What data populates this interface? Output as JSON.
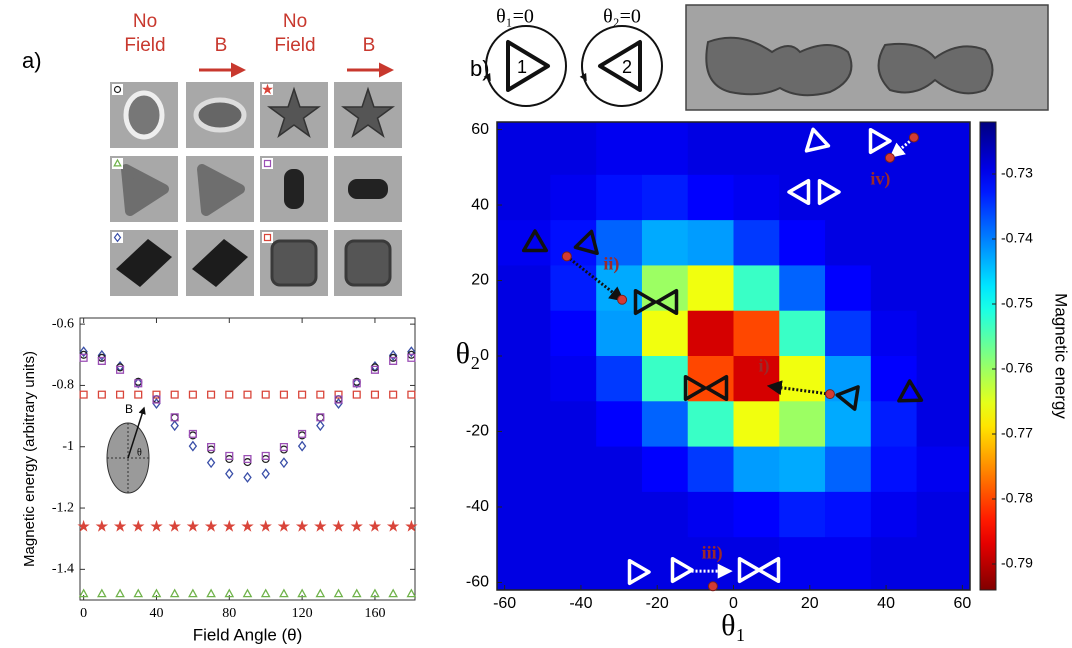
{
  "panel_labels": [
    "a)",
    "b)"
  ],
  "micrographs": {
    "headers": [
      [
        "No",
        "Field"
      ],
      [
        "B"
      ],
      [
        "No",
        "Field"
      ],
      [
        "B"
      ]
    ]
  },
  "schematic": {
    "labels": [
      "θ₁=0",
      "θ₂=0"
    ],
    "numbers": [
      "1",
      "2"
    ]
  },
  "inset": {
    "labels": [
      "B",
      "θ"
    ]
  },
  "chart_data": [
    {
      "type": "scatter",
      "xlabel": "Field Angle (θ)",
      "ylabel": "Magnetic energy (arbitrary units)",
      "x": [
        0,
        10,
        20,
        30,
        40,
        50,
        60,
        70,
        80,
        90,
        100,
        110,
        120,
        130,
        140,
        150,
        160,
        170,
        180
      ],
      "xlim": [
        -2,
        182
      ],
      "xticks": [
        0,
        40,
        80,
        120,
        160
      ],
      "ylim": [
        -1.5,
        -0.58
      ],
      "yticks": [
        -0.6,
        -0.8,
        -1,
        -1.2,
        -1.4
      ],
      "series": [
        {
          "marker": "square",
          "color": "#d9453a",
          "values": [
            -0.83,
            -0.83,
            -0.83,
            -0.83,
            -0.83,
            -0.83,
            -0.83,
            -0.83,
            -0.83,
            -0.83,
            -0.83,
            -0.83,
            -0.83,
            -0.83,
            -0.83,
            -0.83,
            -0.83,
            -0.83,
            -0.83
          ]
        },
        {
          "marker": "diamond",
          "color": "#3a4fa8",
          "values": [
            -0.69,
            -0.702,
            -0.738,
            -0.792,
            -0.859,
            -0.931,
            -0.998,
            -1.052,
            -1.088,
            -1.1,
            -1.088,
            -1.052,
            -0.998,
            -0.931,
            -0.859,
            -0.792,
            -0.738,
            -0.702,
            -0.69
          ]
        },
        {
          "marker": "circle",
          "color": "#222222",
          "values": [
            -0.7,
            -0.71,
            -0.741,
            -0.788,
            -0.845,
            -0.905,
            -0.963,
            -1.009,
            -1.04,
            -1.05,
            -1.04,
            -1.009,
            -0.963,
            -0.905,
            -0.845,
            -0.788,
            -0.741,
            -0.71,
            -0.7
          ]
        },
        {
          "marker": "square",
          "color": "#9b4fb5",
          "values": [
            -0.71,
            -0.72,
            -0.749,
            -0.793,
            -0.846,
            -0.904,
            -0.958,
            -1.001,
            -1.03,
            -1.04,
            -1.03,
            -1.001,
            -0.958,
            -0.904,
            -0.846,
            -0.793,
            -0.749,
            -0.72,
            -0.71
          ]
        },
        {
          "marker": "star",
          "color": "#d9453a",
          "values": [
            -1.26,
            -1.26,
            -1.26,
            -1.26,
            -1.26,
            -1.26,
            -1.26,
            -1.26,
            -1.26,
            -1.26,
            -1.26,
            -1.26,
            -1.26,
            -1.26,
            -1.26,
            -1.26,
            -1.26,
            -1.26,
            -1.26
          ]
        },
        {
          "marker": "triangle",
          "color": "#6fb24a",
          "values": [
            -1.48,
            -1.48,
            -1.48,
            -1.48,
            -1.48,
            -1.48,
            -1.48,
            -1.48,
            -1.48,
            -1.48,
            -1.48,
            -1.48,
            -1.48,
            -1.48,
            -1.48,
            -1.48,
            -1.48,
            -1.48,
            -1.48
          ]
        }
      ]
    },
    {
      "type": "heatmap",
      "xlabel": "θ₁",
      "ylabel": "θ₂",
      "x": [
        -54,
        -42,
        -30,
        -18,
        -6,
        6,
        18,
        30,
        42,
        54
      ],
      "y": [
        54,
        42,
        30,
        18,
        6,
        -6,
        -18,
        -30,
        -42,
        -54
      ],
      "xlim": [
        -62,
        62
      ],
      "ylim": [
        -62,
        62
      ],
      "xticks": [
        -60,
        -40,
        -20,
        0,
        20,
        40,
        60
      ],
      "yticks": [
        -60,
        -40,
        -20,
        0,
        20,
        40,
        60
      ],
      "z": [
        [
          -0.729,
          -0.729,
          -0.73,
          -0.73,
          -0.729,
          -0.729,
          -0.729,
          -0.729,
          -0.729,
          -0.729
        ],
        [
          -0.729,
          -0.73,
          -0.732,
          -0.733,
          -0.731,
          -0.73,
          -0.729,
          -0.729,
          -0.729,
          -0.729
        ],
        [
          -0.73,
          -0.732,
          -0.738,
          -0.743,
          -0.742,
          -0.735,
          -0.731,
          -0.729,
          -0.729,
          -0.729
        ],
        [
          -0.729,
          -0.733,
          -0.743,
          -0.76,
          -0.766,
          -0.753,
          -0.738,
          -0.731,
          -0.729,
          -0.729
        ],
        [
          -0.729,
          -0.731,
          -0.742,
          -0.766,
          -0.788,
          -0.78,
          -0.753,
          -0.735,
          -0.73,
          -0.729
        ],
        [
          -0.729,
          -0.73,
          -0.735,
          -0.753,
          -0.78,
          -0.788,
          -0.766,
          -0.742,
          -0.731,
          -0.729
        ],
        [
          -0.729,
          -0.729,
          -0.731,
          -0.738,
          -0.753,
          -0.766,
          -0.76,
          -0.743,
          -0.733,
          -0.729
        ],
        [
          -0.729,
          -0.729,
          -0.729,
          -0.731,
          -0.735,
          -0.742,
          -0.743,
          -0.738,
          -0.732,
          -0.73
        ],
        [
          -0.729,
          -0.729,
          -0.729,
          -0.729,
          -0.73,
          -0.731,
          -0.733,
          -0.732,
          -0.73,
          -0.729
        ],
        [
          -0.729,
          -0.729,
          -0.729,
          -0.729,
          -0.729,
          -0.729,
          -0.73,
          -0.73,
          -0.729,
          -0.729
        ]
      ],
      "colormap": "jet",
      "reverse": true,
      "clim": [
        -0.794,
        -0.722
      ],
      "colorbar_label": "Magnetic energy",
      "colorbar_ticks": [
        -0.73,
        -0.74,
        -0.75,
        -0.76,
        -0.77,
        -0.78,
        -0.79
      ],
      "annotations": [
        {
          "label": "i)",
          "label_at": [
            8,
            -3
          ],
          "dots": [
            [
              25.3,
              -10.1
            ]
          ],
          "arrow": [
            [
              25.3,
              -10.1
            ],
            [
              9.5,
              -8
            ]
          ],
          "arrow_color": "#111111"
        },
        {
          "label": "ii)",
          "label_at": [
            -32,
            24
          ],
          "dots": [
            [
              -43.7,
              26.4
            ],
            [
              -29.2,
              14.9
            ]
          ],
          "arrow": [
            [
              -43.7,
              26.4
            ],
            [
              -29.2,
              14.9
            ]
          ],
          "arrow_color": "#111111"
        },
        {
          "label": "iii)",
          "label_at": [
            -5.6,
            -52.5
          ],
          "dots": [
            [
              -5.4,
              -61
            ]
          ],
          "arrow": [
            [
              -11,
              -57
            ],
            [
              -1,
              -57
            ]
          ],
          "arrow_color": "#ffffff"
        },
        {
          "label": "iv)",
          "label_at": [
            38.5,
            46.5
          ],
          "dots": [
            [
              47.3,
              57.9
            ],
            [
              41,
              52.5
            ]
          ],
          "arrow": [
            [
              47,
              57.5
            ],
            [
              41.5,
              53
            ]
          ],
          "arrow_color": "#ffffff"
        }
      ]
    }
  ]
}
